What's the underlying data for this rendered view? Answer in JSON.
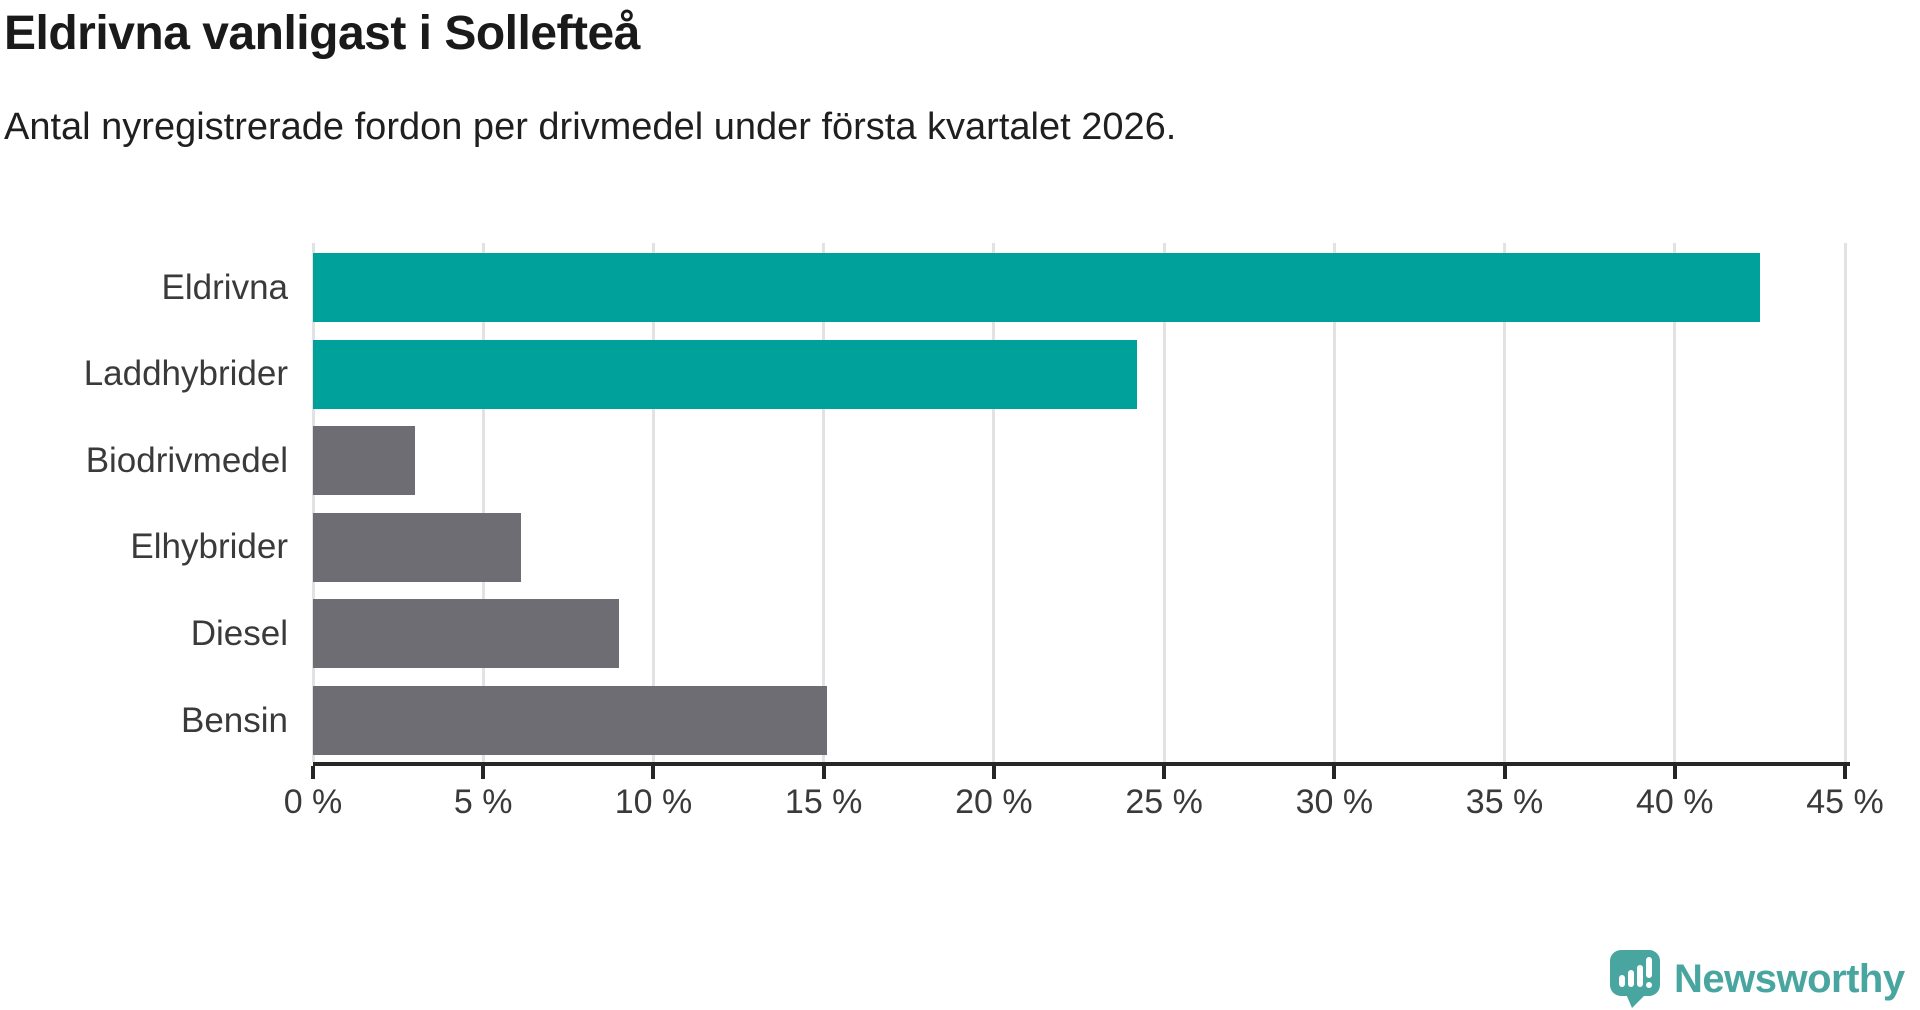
{
  "header": {
    "title": "Eldrivna vanligast i Sollefteå",
    "subtitle": "Antal nyregistrerade fordon per drivmedel under första kvartalet 2026."
  },
  "colors": {
    "accent_teal": "#00a19b",
    "muted_gray": "#6d6d73",
    "gridline": "#e2e2e4",
    "axis": "#262626",
    "label_text": "#3a3a3a",
    "title_text": "#1a1a1a",
    "logo_teal": "#48a5a0"
  },
  "chart_data": {
    "type": "bar",
    "orientation": "horizontal",
    "title": "Eldrivna vanligast i Sollefteå",
    "subtitle": "Antal nyregistrerade fordon per drivmedel under första kvartalet 2026.",
    "categories": [
      "Eldrivna",
      "Laddhybrider",
      "Biodrivmedel",
      "Elhybrider",
      "Diesel",
      "Bensin"
    ],
    "values": [
      42.5,
      24.2,
      3.0,
      6.1,
      9.0,
      15.1
    ],
    "unit": "%",
    "bar_colors": [
      "#00a19b",
      "#00a19b",
      "#6d6d73",
      "#6d6d73",
      "#6d6d73",
      "#6d6d73"
    ],
    "xlim": [
      0,
      45
    ],
    "xticks": [
      0,
      5,
      10,
      15,
      20,
      25,
      30,
      35,
      40,
      45
    ],
    "xtick_labels": [
      "0 %",
      "5 %",
      "10 %",
      "15 %",
      "20 %",
      "25 %",
      "30 %",
      "35 %",
      "40 %",
      "45 %"
    ],
    "grid": "vertical",
    "legend": "none"
  },
  "branding": {
    "logo_text": "Newsworthy",
    "logo_icon": "newsworthy-speech-bubble-chart-icon"
  }
}
